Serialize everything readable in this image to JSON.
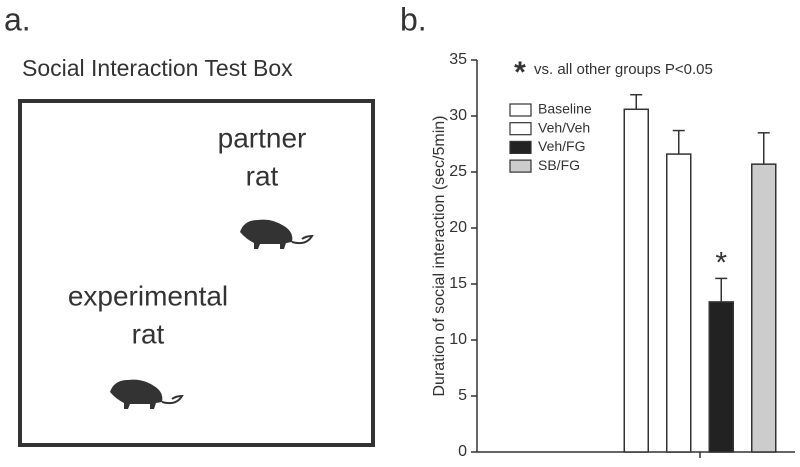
{
  "panel_a": {
    "label": "a.",
    "title": "Social Interaction Test Box",
    "partner": [
      "partner",
      "rat"
    ],
    "experimental": [
      "experimental",
      "rat"
    ]
  },
  "chart_data": {
    "type": "bar",
    "panel_label": "b.",
    "y_label": "Duration of social interaction (sec/5min)",
    "annotation_marker": "*",
    "annotation": "vs. all other groups P<0.05",
    "categories": [
      null
    ],
    "series": [
      {
        "name": "Baseline",
        "color": "#ffffff",
        "values": [
          30.6
        ],
        "errors": [
          1.3
        ]
      },
      {
        "name": "Veh/Veh",
        "color": "#ffffff",
        "values": [
          26.6
        ],
        "errors": [
          2.1
        ]
      },
      {
        "name": "Veh/FG",
        "color": "#222222",
        "values": [
          13.4
        ],
        "errors": [
          2.1
        ],
        "annotation": "*"
      },
      {
        "name": "SB/FG",
        "color": "#cccccc",
        "values": [
          25.7
        ],
        "errors": [
          2.8
        ]
      }
    ],
    "ylim": [
      0,
      35
    ],
    "yticks": [
      0,
      5,
      10,
      15,
      20,
      25,
      30,
      35
    ],
    "legend": "upper-left"
  }
}
